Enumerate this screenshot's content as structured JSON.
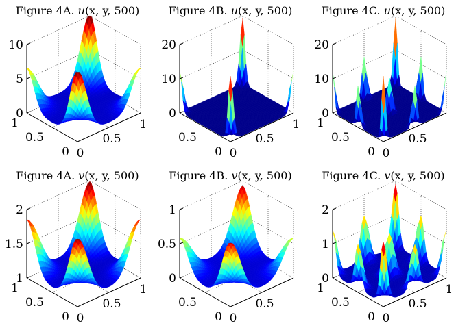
{
  "chart_data": [
    {
      "type": "surface",
      "title": "Figure 4A. u(x, y, 500)",
      "title_parts": {
        "prefix": "Figure 4A.",
        "func": "u",
        "args": "(x, y, 500)"
      },
      "zlim": [
        0,
        10
      ],
      "zticks": [
        0,
        5,
        10
      ],
      "xticks": [
        0,
        0.5,
        1
      ],
      "yticks": [
        0,
        0.5,
        1
      ],
      "surface": {
        "base": 0.7,
        "peaks": [
          {
            "x": 0,
            "y": 0,
            "h": 9.7,
            "s": 0.14
          },
          {
            "x": 1,
            "y": 0,
            "h": 5.8,
            "s": 0.14
          },
          {
            "x": 0,
            "y": 1,
            "h": 5.8,
            "s": 0.14
          },
          {
            "x": 1,
            "y": 1,
            "h": 9.7,
            "s": 0.14
          }
        ]
      }
    },
    {
      "type": "surface",
      "title": "Figure 4B. u(x, y, 500)",
      "title_parts": {
        "prefix": "Figure 4B.",
        "func": "u",
        "args": "(x, y, 500)"
      },
      "zlim": [
        0,
        20
      ],
      "zticks": [
        0,
        10,
        20
      ],
      "xticks": [
        0,
        0.5,
        1
      ],
      "yticks": [
        0,
        0.5
      ],
      "surface": {
        "base": 0.2,
        "peaks": [
          {
            "x": 0,
            "y": 0,
            "h": 19,
            "s": 0.045
          },
          {
            "x": 1,
            "y": 0,
            "h": 12,
            "s": 0.045
          },
          {
            "x": 0,
            "y": 1,
            "h": 12,
            "s": 0.045
          },
          {
            "x": 1,
            "y": 1,
            "h": 19,
            "s": 0.045
          }
        ]
      }
    },
    {
      "type": "surface",
      "title": "Figure 4C. u(x, y, 500)",
      "title_parts": {
        "prefix": "Figure 4C.",
        "func": "u",
        "args": "(x, y, 500)"
      },
      "zlim": [
        0,
        20
      ],
      "zticks": [
        0,
        10,
        20
      ],
      "xticks": [
        0,
        0.5
      ],
      "yticks": [
        0,
        0.5,
        1
      ],
      "surface": {
        "base": 0.2,
        "peaks": [
          {
            "x": 0,
            "y": 0,
            "h": 19,
            "s": 0.035
          },
          {
            "x": 1,
            "y": 0,
            "h": 12,
            "s": 0.035
          },
          {
            "x": 0,
            "y": 1,
            "h": 12,
            "s": 0.035
          },
          {
            "x": 1,
            "y": 1,
            "h": 19,
            "s": 0.035
          },
          {
            "x": 0.5,
            "y": 0,
            "h": 12,
            "s": 0.035
          },
          {
            "x": 0,
            "y": 0.5,
            "h": 12,
            "s": 0.035
          },
          {
            "x": 1,
            "y": 0.5,
            "h": 12,
            "s": 0.035
          },
          {
            "x": 0.5,
            "y": 1,
            "h": 12,
            "s": 0.035
          },
          {
            "x": 0.5,
            "y": 0.5,
            "h": 10,
            "s": 0.035
          }
        ]
      }
    },
    {
      "type": "surface",
      "title": "Figure 4A. v(x, y, 500)",
      "title_parts": {
        "prefix": "Figure 4A.",
        "func": "v",
        "args": "(x, y, 500)"
      },
      "zlim": [
        1,
        2
      ],
      "zticks": [
        1,
        1.5,
        2
      ],
      "xticks": [
        0,
        0.5,
        1
      ],
      "yticks": [
        0,
        0.5,
        1
      ],
      "surface": {
        "base": 1.07,
        "peaks": [
          {
            "x": 0,
            "y": 0,
            "h": 0.92,
            "s": 0.16
          },
          {
            "x": 1,
            "y": 0,
            "h": 0.78,
            "s": 0.16
          },
          {
            "x": 0,
            "y": 1,
            "h": 0.78,
            "s": 0.16
          },
          {
            "x": 1,
            "y": 1,
            "h": 0.92,
            "s": 0.16
          }
        ]
      }
    },
    {
      "type": "surface",
      "title": "Figure 4B. v(x, y, 500)",
      "title_parts": {
        "prefix": "Figure 4B.",
        "func": "v",
        "args": "(x, y, 500)"
      },
      "zlim": [
        0,
        1
      ],
      "zticks": [
        0,
        0.5,
        1
      ],
      "xticks": [
        0,
        0.5
      ],
      "yticks": [
        0,
        0.5
      ],
      "surface": {
        "base": 0.08,
        "peaks": [
          {
            "x": 0,
            "y": 0,
            "h": 0.85,
            "s": 0.16
          },
          {
            "x": 1,
            "y": 0,
            "h": 0.5,
            "s": 0.16
          },
          {
            "x": 0,
            "y": 1,
            "h": 0.5,
            "s": 0.16
          },
          {
            "x": 1,
            "y": 1,
            "h": 0.85,
            "s": 0.16
          }
        ]
      }
    },
    {
      "type": "surface",
      "title": "Figure 4C. v(x, y, 500)",
      "title_parts": {
        "prefix": "Figure 4C.",
        "func": "v",
        "args": "(x, y, 500)"
      },
      "zlim": [
        0,
        2
      ],
      "zticks": [
        0,
        1,
        2
      ],
      "xticks": [
        0,
        0.5,
        1
      ],
      "yticks": [
        0,
        0.5,
        1
      ],
      "surface": {
        "base": 0.1,
        "peaks": [
          {
            "x": 0,
            "y": 0,
            "h": 1.8,
            "s": 0.06
          },
          {
            "x": 1,
            "y": 0,
            "h": 1.3,
            "s": 0.06
          },
          {
            "x": 0,
            "y": 1,
            "h": 1.3,
            "s": 0.06
          },
          {
            "x": 1,
            "y": 1,
            "h": 1.8,
            "s": 0.06
          },
          {
            "x": 0.5,
            "y": 0,
            "h": 1.3,
            "s": 0.06
          },
          {
            "x": 0,
            "y": 0.5,
            "h": 1.3,
            "s": 0.06
          },
          {
            "x": 1,
            "y": 0.5,
            "h": 1.3,
            "s": 0.06
          },
          {
            "x": 0.5,
            "y": 1,
            "h": 1.3,
            "s": 0.06
          },
          {
            "x": 0.5,
            "y": 0.5,
            "h": 1.2,
            "s": 0.06
          }
        ]
      }
    }
  ]
}
